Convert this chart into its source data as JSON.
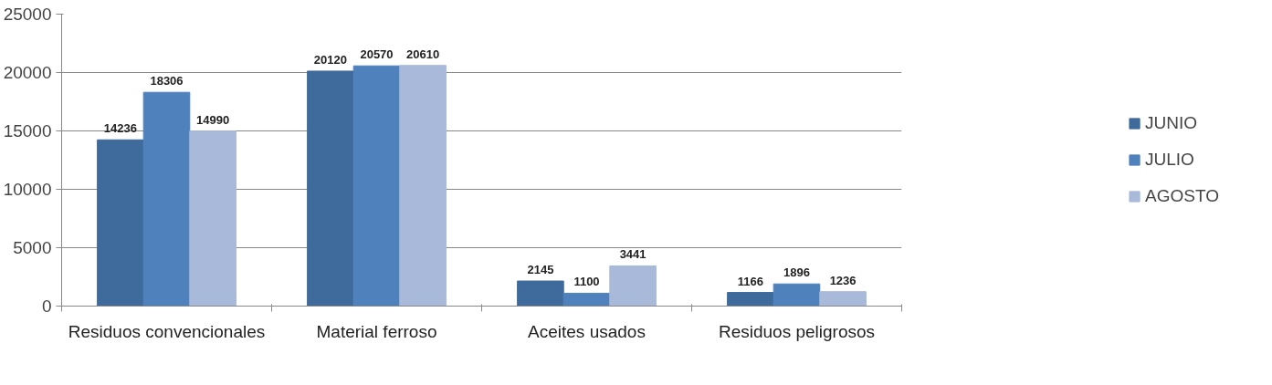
{
  "chart_data": {
    "type": "bar",
    "categories": [
      "Residuos convencionales",
      "Material ferroso",
      "Aceites usados",
      "Residuos peligrosos"
    ],
    "series": [
      {
        "name": "JUNIO",
        "color": "#3f6a9c",
        "values": [
          14236,
          20120,
          2145,
          1166
        ]
      },
      {
        "name": "JULIO",
        "color": "#4f81bd",
        "values": [
          18306,
          20570,
          1100,
          1896
        ]
      },
      {
        "name": "AGOSTO",
        "color": "#a9b9d9",
        "values": [
          14990,
          20610,
          3441,
          1236
        ]
      }
    ],
    "ylim": [
      0,
      25000
    ],
    "yticks": [
      0,
      5000,
      10000,
      15000,
      20000,
      25000
    ],
    "grid": "y",
    "legend": "right",
    "data_labels": true
  }
}
